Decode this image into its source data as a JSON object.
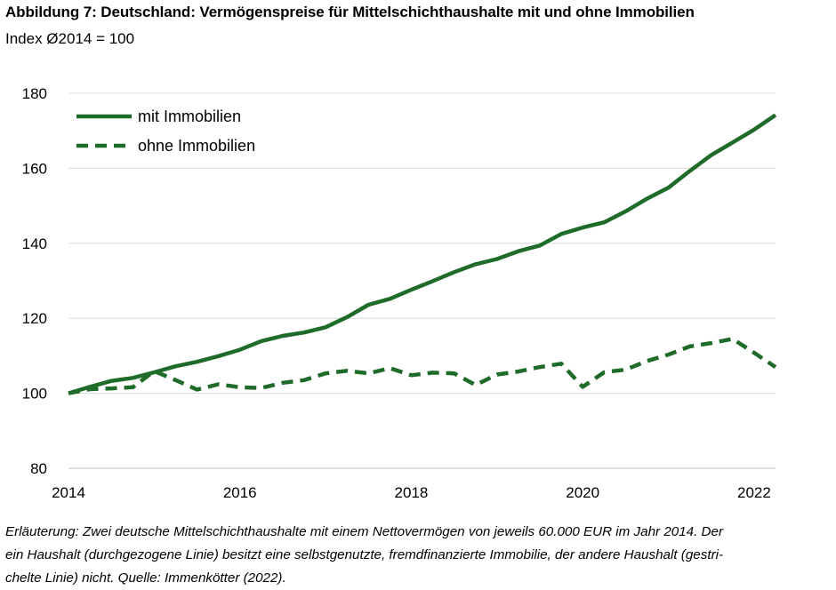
{
  "header": {
    "title": "Abbildung 7: Deutschland: Vermögenspreise für Mittelschichthaushalte mit und ohne Immobilien",
    "subtitle": "Index Ø2014 = 100"
  },
  "footer": {
    "note_line1": "Erläuterung: Zwei deutsche Mittelschichthaushalte mit einem Nettovermögen von jeweils 60.000 EUR im Jahr 2014. Der",
    "note_line2": "ein Haushalt (durchgezogene Linie) besitzt eine selbstgenutzte, fremdfinanzierte Immobilie, der andere Haushalt (gestri-",
    "note_line3": "chelte Linie) nicht. Quelle: Immenkötter (2022)."
  },
  "chart_data": {
    "type": "line",
    "title": "Abbildung 7: Deutschland: Vermögenspreise für Mittelschichthaushalte mit und ohne Immobilien",
    "ylabel": "Index Ø2014 = 100",
    "xlabel": "",
    "xlim": [
      2014.0,
      2022.25
    ],
    "ylim": [
      80,
      180
    ],
    "x_ticks": [
      "2014",
      "2016",
      "2018",
      "2020",
      "2022"
    ],
    "y_ticks": [
      "80",
      "100",
      "120",
      "140",
      "160",
      "180"
    ],
    "grid": "horizontal",
    "legend_position": "top-left",
    "colors": {
      "series": "#1f6b2a",
      "grid": "#d9d9d9",
      "axis": "#bfbfbf"
    },
    "x": [
      2014.0,
      2014.25,
      2014.5,
      2014.75,
      2015.0,
      2015.25,
      2015.5,
      2015.75,
      2016.0,
      2016.25,
      2016.5,
      2016.75,
      2017.0,
      2017.25,
      2017.5,
      2017.75,
      2018.0,
      2018.25,
      2018.5,
      2018.75,
      2019.0,
      2019.25,
      2019.5,
      2019.75,
      2020.0,
      2020.25,
      2020.5,
      2020.75,
      2021.0,
      2021.25,
      2021.5,
      2021.75,
      2022.0,
      2022.25
    ],
    "series": [
      {
        "name": "mit Immobilien",
        "style": "solid",
        "values": [
          100,
          101.7,
          103.3,
          104.1,
          105.6,
          107.2,
          108.4,
          109.9,
          111.6,
          113.9,
          115.3,
          116.2,
          117.6,
          120.3,
          123.6,
          125.2,
          127.6,
          129.9,
          132.3,
          134.4,
          135.8,
          137.9,
          139.4,
          142.5,
          144.2,
          145.6,
          148.5,
          151.9,
          154.8,
          159.3,
          163.5,
          166.9,
          170.3,
          174.2
        ]
      },
      {
        "name": "ohne Immobilien",
        "style": "dashed",
        "values": [
          100,
          101.1,
          101.3,
          101.6,
          105.9,
          103.5,
          101.0,
          102.4,
          101.6,
          101.4,
          102.8,
          103.5,
          105.3,
          106.0,
          105.3,
          106.7,
          104.8,
          105.5,
          105.3,
          102.2,
          105.0,
          105.8,
          107.0,
          107.9,
          101.7,
          105.6,
          106.3,
          108.6,
          110.3,
          112.5,
          113.4,
          114.5,
          110.8,
          107.0
        ]
      }
    ]
  }
}
